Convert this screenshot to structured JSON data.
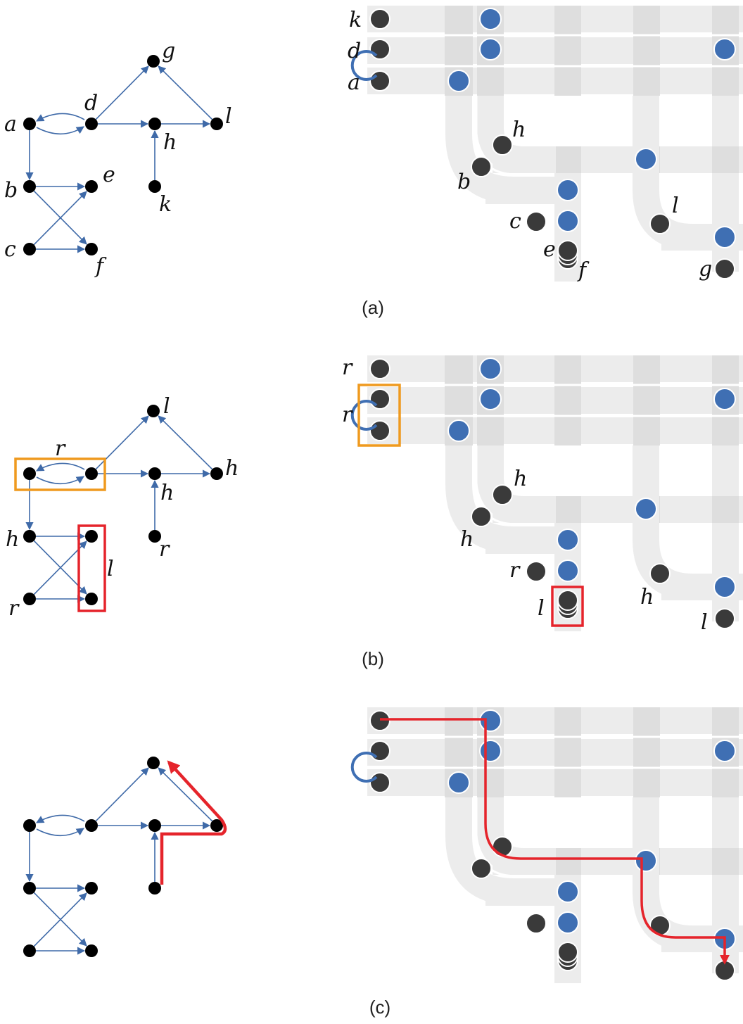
{
  "colors": {
    "edge": "#3f6aa8",
    "node": "#000000",
    "dark_node": "#3a3a3a",
    "blue_node": "#3f6fb3",
    "band": "#ececec",
    "band_dark": "#dedede",
    "orange": "#ef9a1f",
    "red": "#e5242b"
  },
  "panels": [
    {
      "caption": "(a)",
      "graph_labels": [
        "a",
        "d",
        "g",
        "l",
        "h",
        "b",
        "e",
        "k",
        "c",
        "f"
      ],
      "matrix_labels": [
        "k",
        "d",
        "a",
        "h",
        "b",
        "c",
        "e",
        "f",
        "l",
        "g"
      ]
    },
    {
      "caption": "(b)",
      "graph_labels": [
        "l",
        "r",
        "h",
        "h",
        "h",
        "r",
        "l",
        "r"
      ],
      "matrix_labels": [
        "r",
        "r",
        "h",
        "h",
        "r",
        "l",
        "h",
        "l"
      ]
    },
    {
      "caption": "(c)",
      "graph_labels": [],
      "matrix_labels": []
    }
  ]
}
